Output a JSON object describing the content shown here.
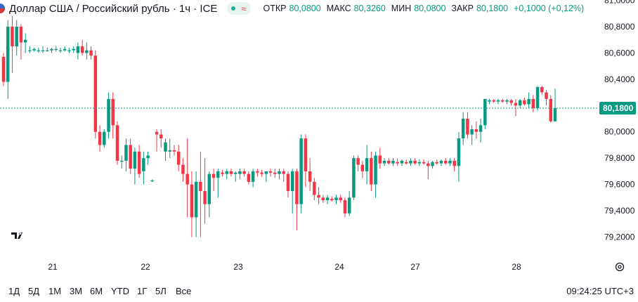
{
  "header": {
    "symbol_title": "Доллар США / Российский рубль · 1ч · ICE",
    "open_label": "ОТКР",
    "open_value": "80,0800",
    "high_label": "МАКС",
    "high_value": "80,3260",
    "low_label": "МИН",
    "low_value": "80,0800",
    "close_label": "ЗАКР",
    "close_value": "80,1800",
    "change": "+0,1000 (+0,12%)"
  },
  "y_axis": {
    "ticks": [
      "81,0000",
      "80,8000",
      "80,6000",
      "80,4000",
      "80,2000",
      "80,0000",
      "79,8000",
      "79,6000",
      "79,4000",
      "79,2000"
    ],
    "current_price": "80,1800"
  },
  "x_axis": {
    "ticks": [
      "21",
      "22",
      "23",
      "24",
      "27",
      "28"
    ]
  },
  "footer": {
    "ranges": [
      "1Д",
      "5Д",
      "1М",
      "3М",
      "6М",
      "YTD",
      "1Г",
      "5Л",
      "Все"
    ],
    "clock": "09:24:25 UTC+3"
  },
  "colors": {
    "up": "#089981",
    "down": "#f23645",
    "price_line": "#089981"
  },
  "chart_data": {
    "type": "candlestick",
    "ylim": [
      79.1,
      81.0
    ],
    "candles": [
      [
        80.57,
        80.6,
        80.35,
        80.38
      ],
      [
        80.38,
        80.85,
        80.25,
        80.8
      ],
      [
        80.8,
        80.88,
        80.45,
        80.65
      ],
      [
        80.65,
        80.85,
        80.58,
        80.8
      ],
      [
        80.8,
        80.82,
        80.55,
        80.68
      ],
      [
        80.68,
        80.75,
        80.6,
        80.7
      ],
      [
        80.62,
        80.65,
        80.6,
        80.62
      ],
      [
        80.62,
        80.64,
        80.61,
        80.63
      ],
      [
        80.62,
        80.64,
        80.6,
        80.62
      ],
      [
        80.62,
        80.65,
        80.6,
        80.62
      ],
      [
        80.62,
        80.64,
        80.61,
        80.62
      ],
      [
        80.62,
        80.64,
        80.6,
        80.63
      ],
      [
        80.63,
        80.65,
        80.61,
        80.63
      ],
      [
        80.62,
        80.64,
        80.6,
        80.62
      ],
      [
        80.62,
        80.65,
        80.61,
        80.63
      ],
      [
        80.62,
        80.64,
        80.6,
        80.62
      ],
      [
        80.62,
        80.65,
        80.6,
        80.63
      ],
      [
        80.6,
        80.68,
        80.55,
        80.65
      ],
      [
        80.65,
        80.7,
        80.58,
        80.6
      ],
      [
        80.6,
        80.68,
        80.55,
        80.62
      ],
      [
        80.62,
        80.65,
        80.55,
        80.58
      ],
      [
        80.58,
        80.62,
        79.95,
        80.0
      ],
      [
        80.0,
        80.05,
        79.85,
        79.9
      ],
      [
        79.9,
        80.02,
        79.88,
        80.0
      ],
      [
        80.0,
        80.3,
        79.95,
        80.25
      ],
      [
        80.25,
        80.3,
        79.95,
        80.05
      ],
      [
        80.05,
        80.08,
        79.75,
        79.78
      ],
      [
        79.78,
        79.82,
        79.72,
        79.78
      ],
      [
        79.78,
        79.95,
        79.7,
        79.9
      ],
      [
        79.9,
        79.95,
        79.68,
        79.72
      ],
      [
        79.72,
        79.88,
        79.6,
        79.85
      ],
      [
        79.85,
        79.9,
        79.65,
        79.68
      ],
      [
        79.7,
        79.85,
        79.6,
        79.8
      ],
      [
        79.8,
        79.85,
        79.75,
        79.82
      ],
      [
        79.63,
        79.64,
        79.62,
        79.63
      ],
      [
        80.0,
        80.02,
        79.85,
        79.98
      ],
      [
        79.98,
        80.02,
        79.88,
        79.95
      ],
      [
        79.85,
        79.95,
        79.78,
        79.92
      ],
      [
        79.85,
        79.95,
        79.8,
        79.86
      ],
      [
        79.86,
        79.9,
        79.82,
        79.85
      ],
      [
        79.85,
        79.9,
        79.7,
        79.75
      ],
      [
        79.75,
        79.8,
        79.62,
        79.68
      ],
      [
        79.68,
        79.95,
        79.35,
        79.6
      ],
      [
        79.6,
        79.7,
        79.2,
        79.35
      ],
      [
        79.35,
        79.7,
        79.2,
        79.62
      ],
      [
        79.62,
        79.85,
        79.2,
        79.55
      ],
      [
        79.55,
        79.8,
        79.3,
        79.45
      ],
      [
        79.45,
        79.7,
        79.35,
        79.68
      ],
      [
        79.68,
        79.72,
        79.55,
        79.65
      ],
      [
        79.65,
        79.72,
        79.5,
        79.7
      ],
      [
        79.69,
        79.71,
        79.66,
        79.68
      ],
      [
        79.68,
        79.72,
        79.64,
        79.7
      ],
      [
        79.7,
        79.72,
        79.66,
        79.68
      ],
      [
        79.68,
        79.7,
        79.62,
        79.69
      ],
      [
        79.68,
        79.72,
        79.64,
        79.7
      ],
      [
        79.7,
        79.72,
        79.66,
        79.68
      ],
      [
        79.68,
        79.7,
        79.6,
        79.62
      ],
      [
        79.62,
        79.72,
        79.58,
        79.7
      ],
      [
        79.7,
        79.72,
        79.66,
        79.69
      ],
      [
        79.69,
        79.71,
        79.66,
        79.68
      ],
      [
        79.68,
        79.7,
        79.62,
        79.7
      ],
      [
        79.7,
        79.72,
        79.66,
        79.69
      ],
      [
        79.69,
        79.72,
        79.65,
        79.68
      ],
      [
        79.68,
        79.72,
        79.64,
        79.7
      ],
      [
        79.7,
        79.72,
        79.62,
        79.68
      ],
      [
        79.68,
        79.7,
        79.5,
        79.55
      ],
      [
        79.55,
        79.72,
        79.38,
        79.7
      ],
      [
        79.7,
        79.72,
        79.25,
        79.45
      ],
      [
        79.45,
        79.98,
        79.38,
        79.95
      ],
      [
        79.95,
        79.98,
        79.58,
        79.7
      ],
      [
        79.7,
        79.8,
        79.55,
        79.62
      ],
      [
        79.62,
        79.65,
        79.48,
        79.52
      ],
      [
        79.52,
        79.58,
        79.45,
        79.5
      ],
      [
        79.5,
        79.52,
        79.46,
        79.48
      ],
      [
        79.48,
        79.52,
        79.45,
        79.5
      ],
      [
        79.49,
        79.51,
        79.47,
        79.48
      ],
      [
        79.48,
        79.52,
        79.45,
        79.5
      ],
      [
        79.5,
        79.52,
        79.46,
        79.48
      ],
      [
        79.48,
        79.5,
        79.35,
        79.38
      ],
      [
        79.38,
        79.55,
        79.36,
        79.5
      ],
      [
        79.5,
        79.82,
        79.48,
        79.8
      ],
      [
        79.8,
        79.82,
        79.7,
        79.75
      ],
      [
        79.75,
        79.78,
        79.65,
        79.7
      ],
      [
        79.7,
        79.9,
        79.6,
        79.8
      ],
      [
        79.8,
        79.85,
        79.55,
        79.6
      ],
      [
        79.6,
        79.85,
        79.5,
        79.82
      ],
      [
        79.82,
        79.88,
        79.72,
        79.76
      ],
      [
        79.76,
        79.8,
        79.74,
        79.78
      ],
      [
        79.78,
        79.8,
        79.75,
        79.76
      ],
      [
        79.76,
        79.8,
        79.74,
        79.78
      ],
      [
        79.77,
        79.8,
        79.74,
        79.76
      ],
      [
        79.76,
        79.79,
        79.74,
        79.78
      ],
      [
        79.77,
        79.79,
        79.75,
        79.76
      ],
      [
        79.76,
        79.8,
        79.74,
        79.78
      ],
      [
        79.78,
        79.8,
        79.75,
        79.76
      ],
      [
        79.76,
        79.79,
        79.74,
        79.77
      ],
      [
        79.77,
        79.79,
        79.75,
        79.76
      ],
      [
        79.76,
        79.78,
        79.64,
        79.74
      ],
      [
        79.74,
        79.78,
        79.72,
        79.77
      ],
      [
        79.77,
        79.79,
        79.75,
        79.76
      ],
      [
        79.76,
        79.79,
        79.74,
        79.78
      ],
      [
        79.78,
        79.8,
        79.75,
        79.76
      ],
      [
        79.76,
        79.8,
        79.74,
        79.78
      ],
      [
        79.78,
        79.8,
        79.7,
        79.74
      ],
      [
        79.74,
        80.0,
        79.62,
        79.95
      ],
      [
        79.95,
        80.15,
        79.9,
        80.1
      ],
      [
        80.1,
        80.15,
        79.95,
        79.98
      ],
      [
        79.98,
        80.05,
        79.9,
        80.02
      ],
      [
        80.02,
        80.08,
        79.95,
        80.0
      ],
      [
        80.0,
        80.1,
        79.92,
        80.05
      ],
      [
        80.05,
        80.25,
        80.02,
        80.25
      ],
      [
        80.23,
        80.25,
        80.21,
        80.24
      ],
      [
        80.24,
        80.25,
        80.22,
        80.23
      ],
      [
        80.23,
        80.25,
        80.21,
        80.24
      ],
      [
        80.24,
        80.25,
        80.22,
        80.23
      ],
      [
        80.23,
        80.25,
        80.21,
        80.24
      ],
      [
        80.24,
        80.25,
        80.2,
        80.22
      ],
      [
        80.22,
        80.25,
        80.12,
        80.2
      ],
      [
        80.2,
        80.25,
        80.18,
        80.24
      ],
      [
        80.24,
        80.26,
        80.2,
        80.21
      ],
      [
        80.21,
        80.3,
        80.18,
        80.25
      ],
      [
        80.25,
        80.28,
        80.15,
        80.18
      ],
      [
        80.18,
        80.35,
        80.16,
        80.34
      ],
      [
        80.34,
        80.35,
        80.28,
        80.3
      ],
      [
        80.3,
        80.32,
        80.2,
        80.25
      ],
      [
        80.25,
        80.28,
        80.07,
        80.08
      ],
      [
        80.08,
        80.33,
        80.08,
        80.18
      ]
    ]
  }
}
